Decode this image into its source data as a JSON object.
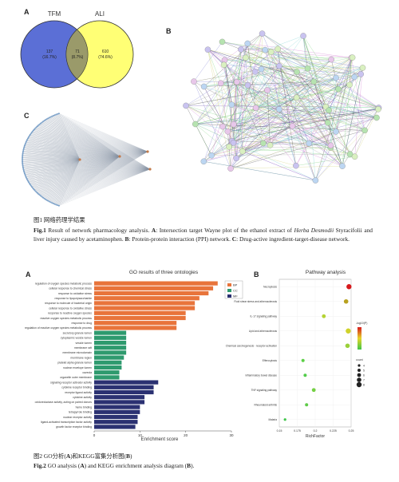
{
  "figure1": {
    "panel_labels": [
      "A",
      "B",
      "C"
    ],
    "venn": {
      "left": "TFM",
      "right": "ALI",
      "left_only": "137",
      "left_only_pct": "(16.7%)",
      "both": "71",
      "both_pct": "(8.7%)",
      "right_only": "610",
      "right_only_pct": "(74.6%)"
    },
    "caption_cn": "图1 网络药理学结果",
    "caption_en": [
      "Fig.1",
      " Result of network pharmacology analysis. ",
      "A",
      ": Intersection target Wayne plot of the ethanol extract of ",
      "Herba Desmodii",
      " Styracifolii and liver injury caused by acetaminophen. ",
      "B",
      ": Protein-protein interaction (PPI) network. ",
      "C",
      ": Drug-active ingredient-target-disease network."
    ]
  },
  "figure2": {
    "panel_labels": [
      "A",
      "B"
    ],
    "go_chart": {
      "type": "bar",
      "title": "GO results of three ontologies",
      "xlabel": "Enrichment score",
      "xlim": [
        0,
        30
      ],
      "xticks": [
        0,
        10,
        20,
        30
      ],
      "groups": [
        {
          "name": "BP",
          "color": "#e8743b",
          "categories": [
            "regulation of oxygen species metabolic process",
            "cellular response to chemical stress",
            "response to oxidative stress",
            "response to lipopolysaccharide",
            "response to molecule of bacterial origin",
            "cellular response to oxidative stress",
            "response to reactive oxygen species",
            "reactive oxygen species metabolic process",
            "response to drug",
            "regulation of reactive oxygen species metabolic process"
          ],
          "values": [
            27,
            26,
            25,
            23,
            22,
            22,
            20,
            20,
            18,
            18
          ]
        },
        {
          "name": "CC",
          "color": "#2e9a6e",
          "categories": [
            "secretory granule lumen",
            "cytoplasmic vesicle lumen",
            "vesicle lumen",
            "membrane raft",
            "membrane microdomain",
            "membrane region",
            "platelet alpha granule lumen",
            "nuclear envelope lumen",
            "caveola",
            "organelle outer membrane"
          ],
          "values": [
            7,
            7,
            7,
            7,
            7,
            6.5,
            6,
            6,
            5.5,
            5.5
          ]
        },
        {
          "name": "MF",
          "color": "#2b3172",
          "categories": [
            "signaling receptor activator activity",
            "cytokine receptor binding",
            "receptor ligand activity",
            "cytokine activity",
            "oxidoreductase activity, acting on paired donors",
            "heme binding",
            "tetrapyrrole binding",
            "nuclear receptor activity",
            "ligand-activated transcription factor activity",
            "growth factor receptor binding"
          ],
          "values": [
            14,
            13,
            13,
            11,
            11,
            10,
            10,
            9.5,
            9.5,
            9
          ]
        }
      ]
    },
    "pathway_chart": {
      "type": "scatter",
      "title": "Pathway analysis",
      "xlabel": "RichFactor",
      "xlim": [
        0.15,
        0.25
      ],
      "xticks": [
        0.15,
        0.175,
        0.2,
        0.225,
        0.25
      ],
      "categories": [
        "Necroptosis",
        "Fluid shear stress and atherosclerosis",
        "IL-17 signaling pathway",
        "Lipid and atherosclerosis",
        "Chemical carcinogenesis - receptor activation",
        "Efferocytosis",
        "Inflammatory bowel disease",
        "TNF signaling pathway",
        "Rheumatoid arthritis",
        "Malaria"
      ],
      "values": [
        0.247,
        0.243,
        0.212,
        0.246,
        0.245,
        0.183,
        0.186,
        0.198,
        0.188,
        0.158
      ],
      "sizes": [
        8,
        7,
        6,
        8,
        7,
        5,
        5,
        6,
        5,
        4
      ],
      "colors": [
        "#d7191c",
        "#b8a11f",
        "#b5d334",
        "#cfd22a",
        "#9ad03a",
        "#5cd046",
        "#52cc4a",
        "#74d043",
        "#5ecb48",
        "#3fc64a"
      ],
      "color_legend_title": "-log10(P)",
      "size_legend_title": "count",
      "size_legend": [
        4,
        5,
        6,
        7,
        8
      ]
    },
    "caption_cn": [
      "图2 GO分析(",
      "A",
      ")和KEGG富集分析图(",
      "B",
      ")"
    ],
    "caption_en": [
      "Fig.2",
      " GO analysis (",
      "A",
      ") and KEGG enrichment analysis diagram (",
      "B",
      ")."
    ]
  }
}
